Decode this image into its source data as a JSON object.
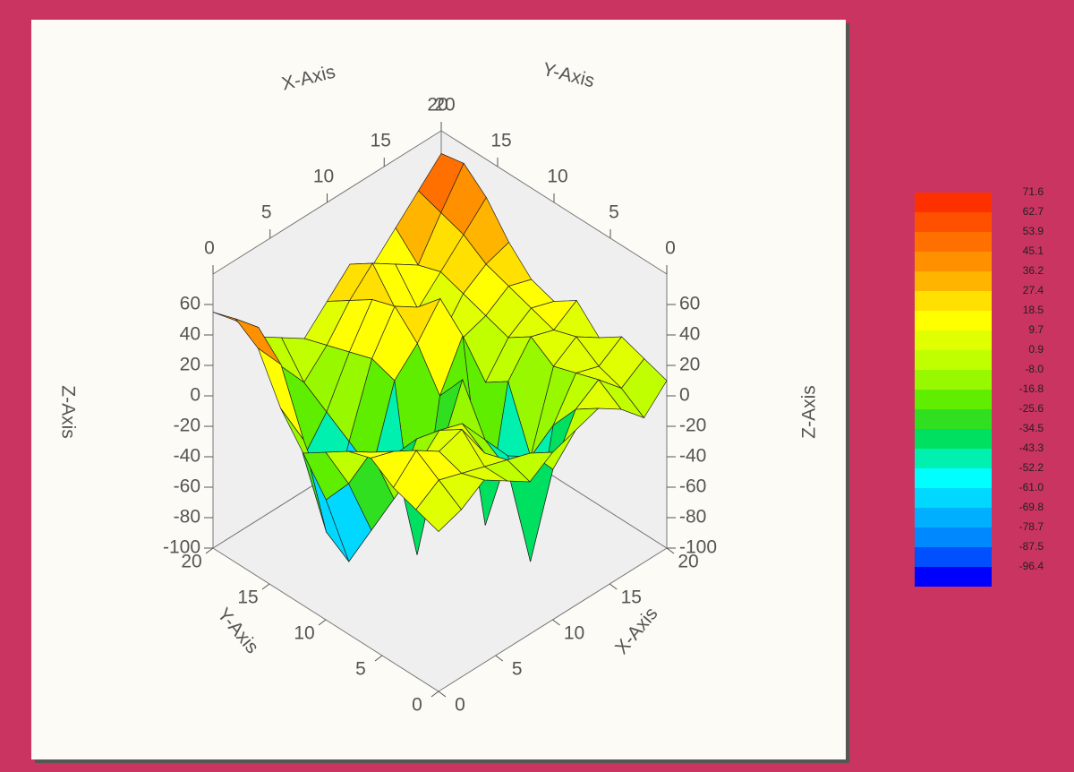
{
  "chart_data": {
    "type": "surface",
    "x_label": "X-Axis",
    "y_label": "Y-Axis",
    "z_label": "Z-Axis",
    "xlim": [
      0,
      20
    ],
    "ylim": [
      0,
      20
    ],
    "zlim": [
      -100,
      80
    ],
    "xticks": [
      0,
      5,
      10,
      15,
      20
    ],
    "yticks": [
      0,
      5,
      10,
      15,
      20
    ],
    "zticks": [
      -100,
      -80,
      -60,
      -40,
      -20,
      0,
      20,
      40,
      60
    ],
    "x": [
      0,
      2,
      4,
      6,
      8,
      10,
      12,
      14,
      16,
      18,
      20
    ],
    "y": [
      0,
      2,
      4,
      6,
      8,
      10,
      12,
      14,
      16,
      18,
      20
    ],
    "z": [
      [
        5,
        10,
        20,
        10,
        0,
        10,
        15,
        20,
        10,
        -5,
        10
      ],
      [
        10,
        20,
        15,
        10,
        5,
        0,
        -20,
        10,
        20,
        5,
        15
      ],
      [
        15,
        30,
        20,
        25,
        0,
        -20,
        -90,
        -10,
        15,
        10,
        20
      ],
      [
        25,
        20,
        0,
        15,
        10,
        -10,
        -30,
        -40,
        10,
        20,
        10
      ],
      [
        20,
        10,
        -30,
        0,
        -20,
        20,
        -85,
        0,
        20,
        15,
        25
      ],
      [
        10,
        -20,
        -60,
        -20,
        -95,
        0,
        30,
        -10,
        10,
        20,
        15
      ],
      [
        0,
        -40,
        -90,
        -40,
        10,
        25,
        45,
        10,
        15,
        25,
        20
      ],
      [
        20,
        -10,
        -80,
        -30,
        15,
        40,
        30,
        0,
        20,
        30,
        35
      ],
      [
        50,
        30,
        -40,
        -20,
        10,
        35,
        20,
        10,
        25,
        40,
        55
      ],
      [
        60,
        45,
        10,
        -10,
        5,
        25,
        40,
        30,
        20,
        45,
        68
      ],
      [
        55,
        40,
        20,
        10,
        0,
        15,
        30,
        20,
        35,
        50,
        65
      ]
    ],
    "levels": [
      71.6,
      62.7,
      53.9,
      45.1,
      36.2,
      27.4,
      18.5,
      9.7,
      0.9,
      {
        "value": -8,
        "label": "-8.0"
      },
      -16.8,
      -25.6,
      -34.5,
      -43.3,
      -52.2,
      {
        "value": -61,
        "label": "-61.0"
      },
      -69.8,
      -78.7,
      -87.5,
      -96.4
    ],
    "colors": [
      "#ff3000",
      "#ff5000",
      "#ff7000",
      "#ff9000",
      "#ffb400",
      "#ffe000",
      "#ffff00",
      "#e0ff00",
      "#c0ff00",
      "#98f800",
      "#60ee00",
      "#30e020",
      "#00e060",
      "#00f0b0",
      "#00ffff",
      "#00d8ff",
      "#00b0ff",
      "#0088ff",
      "#0050ff",
      "#0000ff"
    ]
  }
}
